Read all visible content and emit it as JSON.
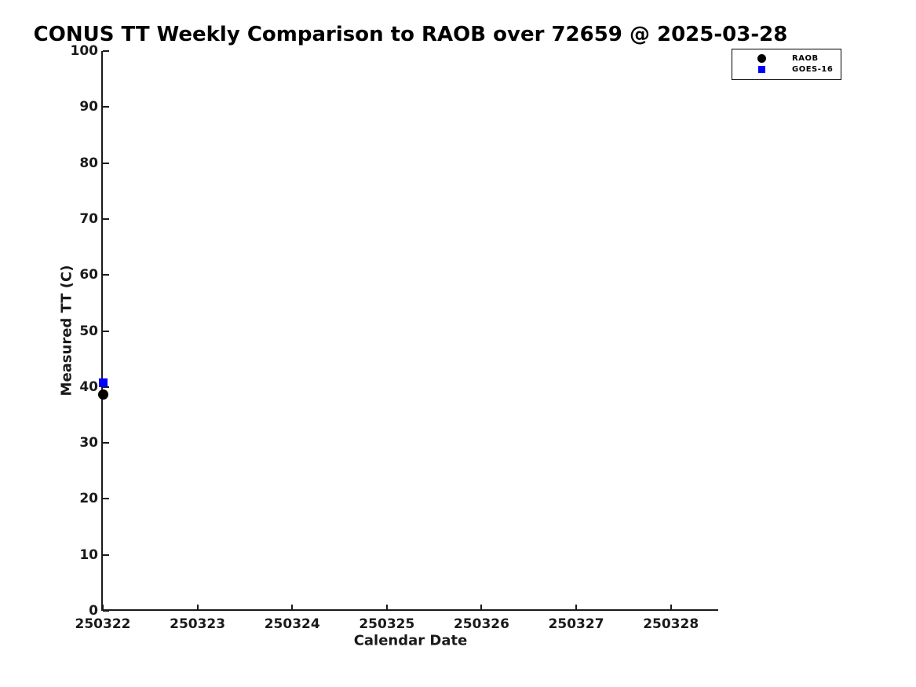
{
  "chart_data": {
    "type": "scatter",
    "title": "CONUS TT Weekly Comparison to RAOB over 72659 @ 2025-03-28",
    "xlabel": "Calendar Date",
    "ylabel": "Measured TT (C)",
    "xlim": [
      250322,
      250328.5
    ],
    "ylim": [
      0,
      100
    ],
    "x_ticks": [
      250322,
      250323,
      250324,
      250325,
      250326,
      250327,
      250328
    ],
    "y_ticks": [
      0,
      10,
      20,
      30,
      40,
      50,
      60,
      70,
      80,
      90,
      100
    ],
    "grid": false,
    "legend_position": "top-right",
    "series": [
      {
        "name": "RAOB",
        "marker": "circle",
        "color": "#000000",
        "points": [
          {
            "x": 250322,
            "y": 38.7
          }
        ]
      },
      {
        "name": "GOES-16",
        "marker": "square",
        "color": "#0000ff",
        "points": [
          {
            "x": 250322,
            "y": 40.7
          }
        ]
      }
    ]
  },
  "colors": {
    "axis": "#1a1a1a",
    "background": "#ffffff",
    "title_text": "#000000"
  }
}
